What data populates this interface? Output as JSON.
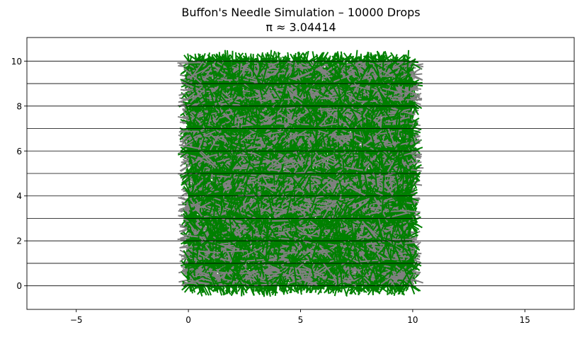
{
  "chart_data": {
    "type": "line",
    "title": "Buffon's Needle Simulation – 10000 Drops",
    "subtitle": "π ≈ 3.04414",
    "xlabel": "",
    "ylabel": "",
    "xlim": [
      -7.2,
      17.2
    ],
    "ylim": [
      -1.05,
      11.05
    ],
    "xticks": [
      -5,
      0,
      5,
      10,
      15
    ],
    "yticks": [
      0,
      2,
      4,
      6,
      8,
      10
    ],
    "grid": false,
    "legend": "none",
    "horizontal_lines_y": [
      0,
      1,
      2,
      3,
      4,
      5,
      6,
      7,
      8,
      9,
      10
    ],
    "needle_length": 1.0,
    "needle_region": {
      "x": [
        0,
        10
      ],
      "y": [
        0,
        10
      ]
    },
    "total_drops": 10000,
    "series": [
      {
        "values": [],
        "color": "#808080"
      },
      {
        "values": [],
        "color": "#008000"
      }
    ],
    "colors": {
      "line": "#000000",
      "needle_no_cross": "#808080",
      "needle_cross": "#008000"
    }
  }
}
